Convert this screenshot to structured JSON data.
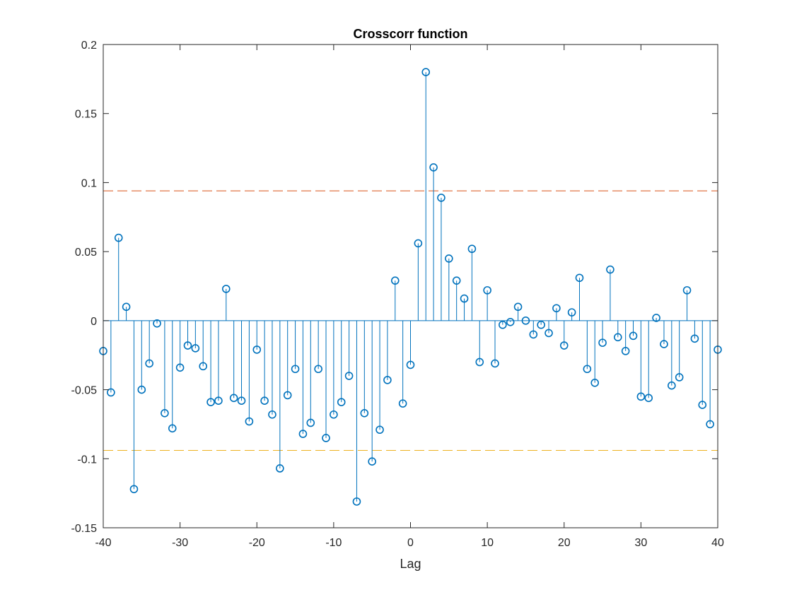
{
  "chart_data": {
    "type": "stem",
    "title": "Crosscorr function",
    "xlabel": "Lag",
    "ylabel": "",
    "xlim": [
      -40,
      40
    ],
    "ylim": [
      -0.15,
      0.2
    ],
    "xticks": [
      -40,
      -30,
      -20,
      -10,
      0,
      10,
      20,
      30,
      40
    ],
    "xtick_labels": [
      "-40",
      "-30",
      "-20",
      "-10",
      "0",
      "10",
      "20",
      "30",
      "40"
    ],
    "yticks": [
      -0.15,
      -0.1,
      -0.05,
      0,
      0.05,
      0.1,
      0.15,
      0.2
    ],
    "ytick_labels": [
      "-0.15",
      "-0.1",
      "-0.05",
      "0",
      "0.05",
      "0.1",
      "0.15",
      "0.2"
    ],
    "grid": false,
    "series": [
      {
        "color": "#0072BD",
        "marker": "circle",
        "x": [
          -40,
          -39,
          -38,
          -37,
          -36,
          -35,
          -34,
          -33,
          -32,
          -31,
          -30,
          -29,
          -28,
          -27,
          -26,
          -25,
          -24,
          -23,
          -22,
          -21,
          -20,
          -19,
          -18,
          -17,
          -16,
          -15,
          -14,
          -13,
          -12,
          -11,
          -10,
          -9,
          -8,
          -7,
          -6,
          -5,
          -4,
          -3,
          -2,
          -1,
          0,
          1,
          2,
          3,
          4,
          5,
          6,
          7,
          8,
          9,
          10,
          11,
          12,
          13,
          14,
          15,
          16,
          17,
          18,
          19,
          20,
          21,
          22,
          23,
          24,
          25,
          26,
          27,
          28,
          29,
          30,
          31,
          32,
          33,
          34,
          35,
          36,
          37,
          38,
          39,
          40
        ],
        "values": [
          -0.022,
          -0.052,
          0.06,
          0.01,
          -0.122,
          -0.05,
          -0.031,
          -0.002,
          -0.067,
          -0.078,
          -0.034,
          -0.018,
          -0.02,
          -0.033,
          -0.059,
          -0.058,
          0.023,
          -0.056,
          -0.058,
          -0.073,
          -0.021,
          -0.058,
          -0.068,
          -0.107,
          -0.054,
          -0.035,
          -0.082,
          -0.074,
          -0.035,
          -0.085,
          -0.068,
          -0.059,
          -0.04,
          -0.131,
          -0.067,
          -0.102,
          -0.079,
          -0.043,
          0.029,
          -0.06,
          -0.032,
          0.056,
          0.18,
          0.111,
          0.089,
          0.045,
          0.029,
          0.016,
          0.052,
          -0.03,
          0.022,
          -0.031,
          -0.003,
          -0.001,
          0.01,
          0,
          -0.01,
          -0.003,
          -0.009,
          0.009,
          -0.018,
          0.006,
          0.031,
          -0.035,
          -0.045,
          -0.016,
          0.037,
          -0.012,
          -0.022,
          -0.011,
          -0.055,
          -0.056,
          0.002,
          -0.017,
          -0.047,
          -0.041,
          0.022,
          -0.013,
          -0.061,
          -0.075,
          -0.021
        ]
      }
    ],
    "bounds": [
      {
        "value": 0.094,
        "color": "#D95319",
        "style": "dashed"
      },
      {
        "value": -0.094,
        "color": "#EDB120",
        "style": "dashed"
      }
    ]
  }
}
